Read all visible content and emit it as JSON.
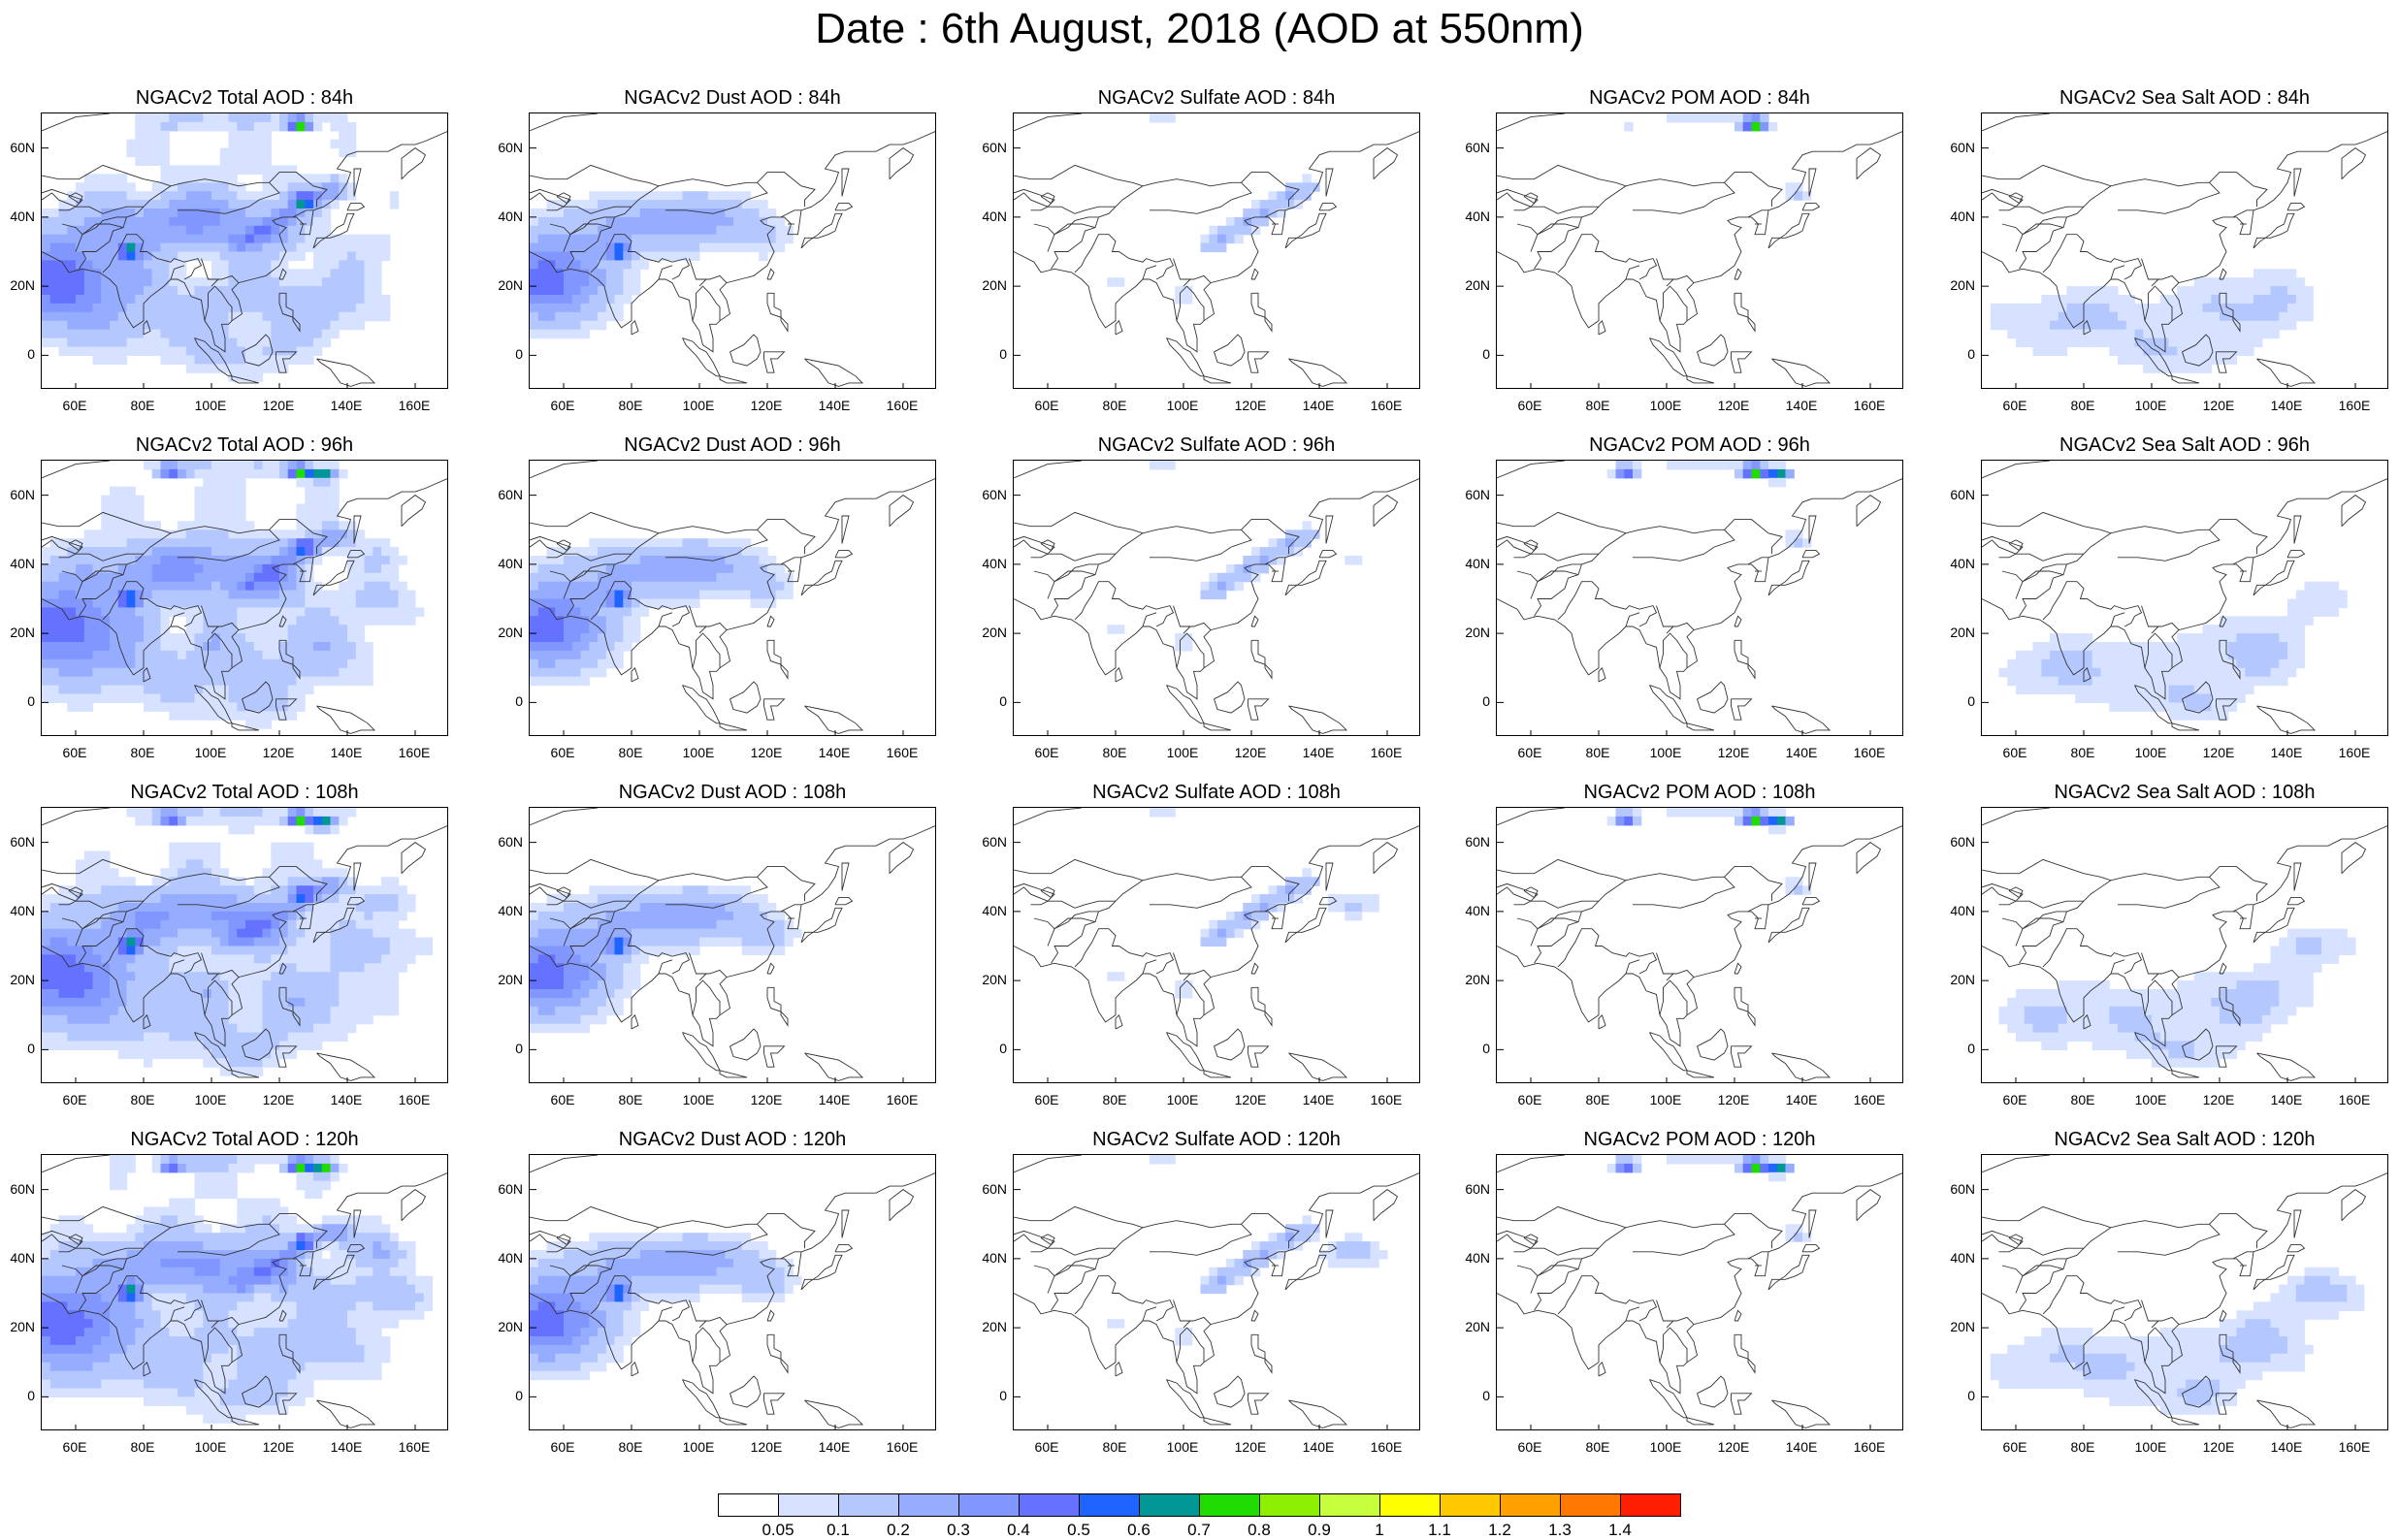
{
  "title": "Date : 6th August, 2018 (AOD at 550nm)",
  "panels": [
    [
      "NGACv2 Total AOD : 84h",
      "NGACv2 Dust AOD : 84h",
      "NGACv2 Sulfate AOD : 84h",
      "NGACv2 POM AOD : 84h",
      "NGACv2 Sea Salt AOD : 84h"
    ],
    [
      "NGACv2 Total AOD : 96h",
      "NGACv2 Dust AOD : 96h",
      "NGACv2 Sulfate AOD : 96h",
      "NGACv2 POM AOD : 96h",
      "NGACv2 Sea Salt AOD : 96h"
    ],
    [
      "NGACv2 Total AOD : 108h",
      "NGACv2 Dust AOD : 108h",
      "NGACv2 Sulfate AOD : 108h",
      "NGACv2 POM AOD : 108h",
      "NGACv2 Sea Salt AOD : 108h"
    ],
    [
      "NGACv2 Total AOD : 120h",
      "NGACv2 Dust AOD : 120h",
      "NGACv2 Sulfate AOD : 120h",
      "NGACv2 POM AOD : 120h",
      "NGACv2 Sea Salt  AOD : 120h"
    ]
  ],
  "lat_ticks": [
    "60N",
    "40N",
    "20N",
    "0"
  ],
  "lon_ticks": [
    "60E",
    "80E",
    "100E",
    "120E",
    "140E",
    "160E"
  ],
  "colorbar": {
    "labels": [
      "0.05",
      "0.1",
      "0.2",
      "0.3",
      "0.4",
      "0.5",
      "0.6",
      "0.7",
      "0.8",
      "0.9",
      "1",
      "1.1",
      "1.2",
      "1.3",
      "1.4"
    ],
    "colors": [
      "#ffffff",
      "#d6e2ff",
      "#b4c8ff",
      "#96adff",
      "#8296ff",
      "#6472ff",
      "#1e64ff",
      "#009696",
      "#20dc00",
      "#8cf000",
      "#c8ff3c",
      "#ffff00",
      "#ffc800",
      "#ffa000",
      "#ff7800",
      "#ff1e00"
    ]
  }
}
